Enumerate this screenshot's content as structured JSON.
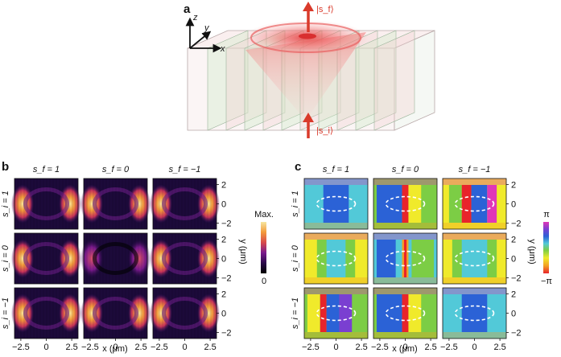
{
  "figure": {
    "panel_a": {
      "letter": "a",
      "axes": {
        "z": "z",
        "y": "y",
        "x": "x"
      },
      "arrow_top_label": "|s_f⟩",
      "arrow_bottom_label": "|s_i⟩",
      "arrow_color": "#d93a2b"
    },
    "panel_b": {
      "letter": "b",
      "col_labels": [
        "s_f = 1",
        "s_f = 0",
        "s_f = −1"
      ],
      "row_labels": [
        "s_i = 1",
        "s_i = 0",
        "s_i = −1"
      ],
      "x_ticks": [
        "−2.5",
        "0",
        "2.5"
      ],
      "y_ticks": [
        "2",
        "0",
        "−2"
      ],
      "xlabel": "x (μm)",
      "ylabel": "y (μm)",
      "colorbar": {
        "max_label": "Max.",
        "min_label": "0",
        "colors": [
          "#000000",
          "#2a0a4a",
          "#7a1a8c",
          "#d84a4a",
          "#f39a3a",
          "#f6e6a0"
        ]
      }
    },
    "panel_c": {
      "letter": "c",
      "col_labels": [
        "s_f = 1",
        "s_f = 0",
        "s_f = −1"
      ],
      "row_labels": [
        "s_i = 1",
        "s_i = 0",
        "s_i = −1"
      ],
      "x_ticks": [
        "−2.5",
        "0",
        "2.5"
      ],
      "y_ticks": [
        "2",
        "0",
        "−2"
      ],
      "xlabel": "x (μm)",
      "ylabel": "y (μm)",
      "colorbar": {
        "max_label": "π",
        "min_label": "−π",
        "colors": [
          "#e8242b",
          "#f2a124",
          "#f0ea2b",
          "#7ccd45",
          "#52c9d8",
          "#2b62d6",
          "#7a3fd1",
          "#e036b8"
        ]
      }
    }
  }
}
